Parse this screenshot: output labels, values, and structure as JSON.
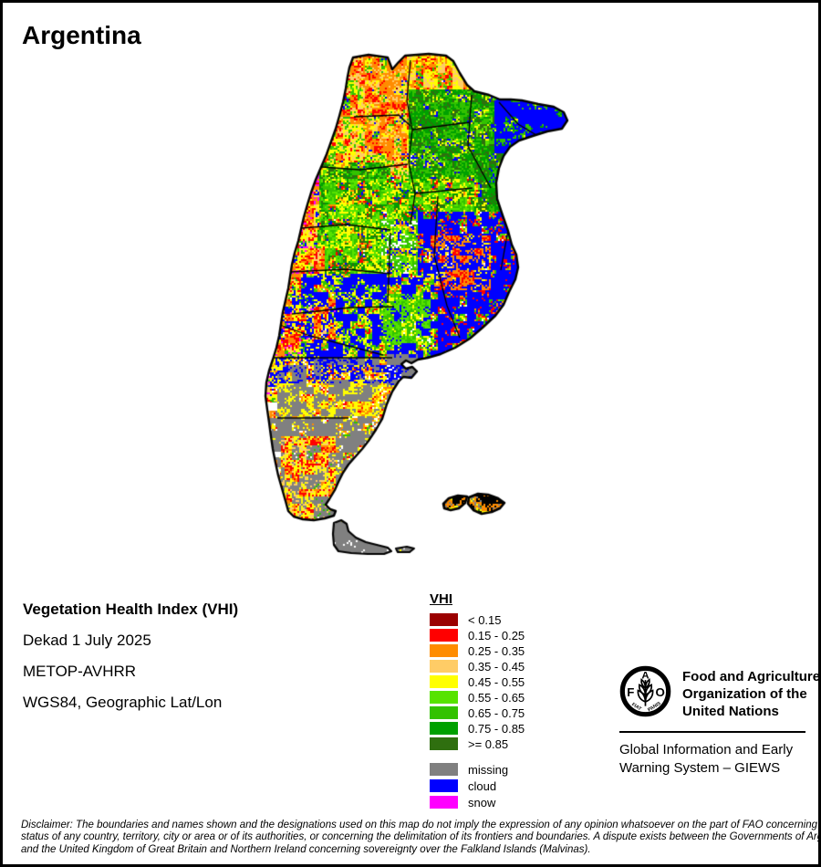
{
  "title": "Argentina",
  "info": {
    "heading": "Vegetation Health Index (VHI)",
    "date_line": "Dekad 1 July 2025",
    "sensor_line": "METOP-AVHRR",
    "projection_line": "WGS84, Geographic Lat/Lon"
  },
  "legend": {
    "title": "VHI",
    "classes": [
      {
        "label": "< 0.15",
        "color": "#9B0000"
      },
      {
        "label": "0.15 - 0.25",
        "color": "#FF0000"
      },
      {
        "label": "0.25 - 0.35",
        "color": "#FF8C00"
      },
      {
        "label": "0.35 - 0.45",
        "color": "#FFCC66"
      },
      {
        "label": "0.45 - 0.55",
        "color": "#FFFF00"
      },
      {
        "label": "0.55 - 0.65",
        "color": "#57E300"
      },
      {
        "label": "0.65 - 0.75",
        "color": "#33C200"
      },
      {
        "label": "0.75 - 0.85",
        "color": "#00A000"
      },
      {
        "label": ">= 0.85",
        "color": "#2F6F0F"
      }
    ],
    "extras": [
      {
        "key": "missing",
        "label": "missing",
        "color": "#808080"
      },
      {
        "key": "cloud",
        "label": "cloud",
        "color": "#0000FF"
      },
      {
        "key": "snow",
        "label": "snow",
        "color": "#FF00FF"
      }
    ]
  },
  "fao": {
    "org_name_lines": [
      "Food and Agriculture",
      "Organization of the",
      "United Nations"
    ],
    "giews_lines": [
      "Global Information and Early",
      "Warning System – GIEWS"
    ],
    "logo": {
      "letters": [
        "F",
        "A",
        "O"
      ],
      "motto_left": "FIAT",
      "motto_right": "PANIS"
    }
  },
  "disclaimer_lines": [
    "Disclaimer: The boundaries and names shown and the designations used on this map do not imply the expression of any opinion whatsoever on the part of FAO concerning the legal",
    "status of any country, territory, city or area or of its authorities, or concerning the delimitation of its frontiers and boundaries. A dispute exists between the Governments of Argentina",
    "and the United Kingdom of Great Britain and Northern Ireland concerning sovereignty over the Falkland Islands (Malvinas)."
  ]
}
